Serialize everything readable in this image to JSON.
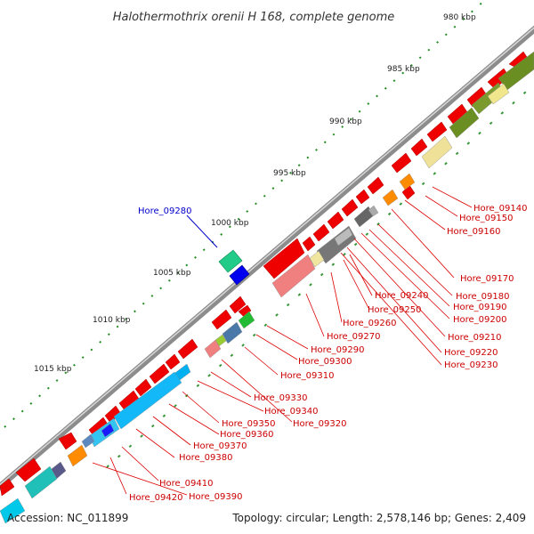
{
  "title": "Halothermothrix orenii H 168, complete genome",
  "footer": {
    "accession": "Accession: NC_011899",
    "summary": "Topology: circular; Length: 2,578,146 bp; Genes: 2,409"
  },
  "kbp_labels": [
    "980 kbp",
    "985 kbp",
    "990 kbp",
    "995 kbp",
    "1000 kbp",
    "1005 kbp",
    "1010 kbp",
    "1015 kbp"
  ],
  "gene_labels": [
    {
      "id": "highlight",
      "text": "Hore_09280",
      "color": "#0000cc"
    },
    {
      "id": "g09140",
      "text": "Hore_09140",
      "color": "#cc0000"
    },
    {
      "id": "g09150",
      "text": "Hore_09150",
      "color": "#cc0000"
    },
    {
      "id": "g09160",
      "text": "Hore_09160",
      "color": "#cc0000"
    },
    {
      "id": "g09170",
      "text": "Hore_09170",
      "color": "#cc0000"
    },
    {
      "id": "g09180",
      "text": "Hore_09180",
      "color": "#cc0000"
    },
    {
      "id": "g09190",
      "text": "Hore_09190",
      "color": "#cc0000"
    },
    {
      "id": "g09200",
      "text": "Hore_09200",
      "color": "#cc0000"
    },
    {
      "id": "g09210",
      "text": "Hore_09210",
      "color": "#cc0000"
    },
    {
      "id": "g09220",
      "text": "Hore_09220",
      "color": "#cc0000"
    },
    {
      "id": "g09230",
      "text": "Hore_09230",
      "color": "#cc0000"
    },
    {
      "id": "g09240",
      "text": "Hore_09240",
      "color": "#cc0000"
    },
    {
      "id": "g09250",
      "text": "Hore_09250",
      "color": "#cc0000"
    },
    {
      "id": "g09260",
      "text": "Hore_09260",
      "color": "#cc0000"
    },
    {
      "id": "g09270",
      "text": "Hore_09270",
      "color": "#cc0000"
    },
    {
      "id": "g09290",
      "text": "Hore_09290",
      "color": "#cc0000"
    },
    {
      "id": "g09300",
      "text": "Hore_09300",
      "color": "#cc0000"
    },
    {
      "id": "g09310",
      "text": "Hore_09310",
      "color": "#cc0000"
    },
    {
      "id": "g09320",
      "text": "Hore_09320",
      "color": "#cc0000"
    },
    {
      "id": "g09330",
      "text": "Hore_09330",
      "color": "#cc0000"
    },
    {
      "id": "g09340",
      "text": "Hore_09340",
      "color": "#cc0000"
    },
    {
      "id": "g09350",
      "text": "Hore_09350",
      "color": "#cc0000"
    },
    {
      "id": "g09360",
      "text": "Hore_09360",
      "color": "#cc0000"
    },
    {
      "id": "g09370",
      "text": "Hore_09370",
      "color": "#cc0000"
    },
    {
      "id": "g09380",
      "text": "Hore_09380",
      "color": "#cc0000"
    },
    {
      "id": "g09390",
      "text": "Hore_09390",
      "color": "#cc0000"
    },
    {
      "id": "g09410",
      "text": "Hore_09410",
      "color": "#cc0000"
    },
    {
      "id": "g09420",
      "text": "Hore_09420",
      "color": "#cc0000"
    }
  ],
  "colors": {
    "backbone": "#8c8c8c",
    "forward_gene": "#ee0000",
    "tick": "#228b22",
    "highlight_label": "#0000cc",
    "gene_label": "#cc0000"
  }
}
